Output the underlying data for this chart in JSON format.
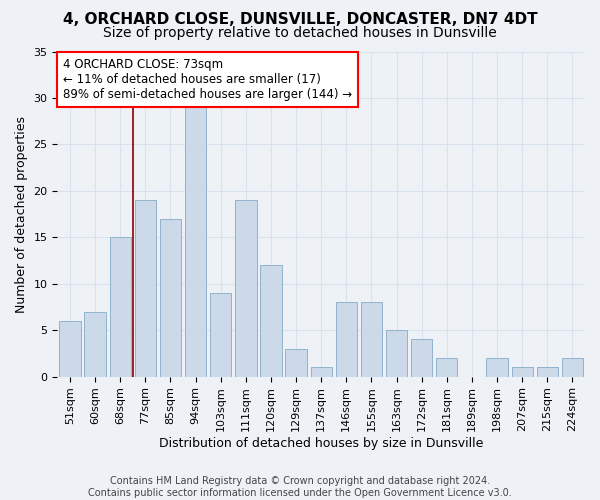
{
  "title_line1": "4, ORCHARD CLOSE, DUNSVILLE, DONCASTER, DN7 4DT",
  "title_line2": "Size of property relative to detached houses in Dunsville",
  "xlabel": "Distribution of detached houses by size in Dunsville",
  "ylabel": "Number of detached properties",
  "footer_line1": "Contains HM Land Registry data © Crown copyright and database right 2024.",
  "footer_line2": "Contains public sector information licensed under the Open Government Licence v3.0.",
  "bins": [
    "51sqm",
    "60sqm",
    "68sqm",
    "77sqm",
    "85sqm",
    "94sqm",
    "103sqm",
    "111sqm",
    "120sqm",
    "129sqm",
    "137sqm",
    "146sqm",
    "155sqm",
    "163sqm",
    "172sqm",
    "181sqm",
    "189sqm",
    "198sqm",
    "207sqm",
    "215sqm",
    "224sqm"
  ],
  "values": [
    6,
    7,
    15,
    19,
    17,
    29,
    9,
    19,
    12,
    3,
    1,
    8,
    8,
    5,
    4,
    2,
    0,
    2,
    1,
    1,
    2
  ],
  "bar_color": "#ccd9e8",
  "bar_edge_color": "#90b4cc",
  "bar_width": 0.85,
  "ylim": [
    0,
    35
  ],
  "yticks": [
    0,
    5,
    10,
    15,
    20,
    25,
    30,
    35
  ],
  "red_line_x": 2.5,
  "annotation_text_line1": "4 ORCHARD CLOSE: 73sqm",
  "annotation_text_line2": "← 11% of detached houses are smaller (17)",
  "annotation_text_line3": "89% of semi-detached houses are larger (144) →",
  "bg_color": "#eef2f7",
  "grid_color": "#d8e2ee",
  "title_fontsize": 11,
  "subtitle_fontsize": 10,
  "axis_label_fontsize": 9,
  "tick_fontsize": 8,
  "annotation_fontsize": 8.5,
  "footer_fontsize": 7
}
